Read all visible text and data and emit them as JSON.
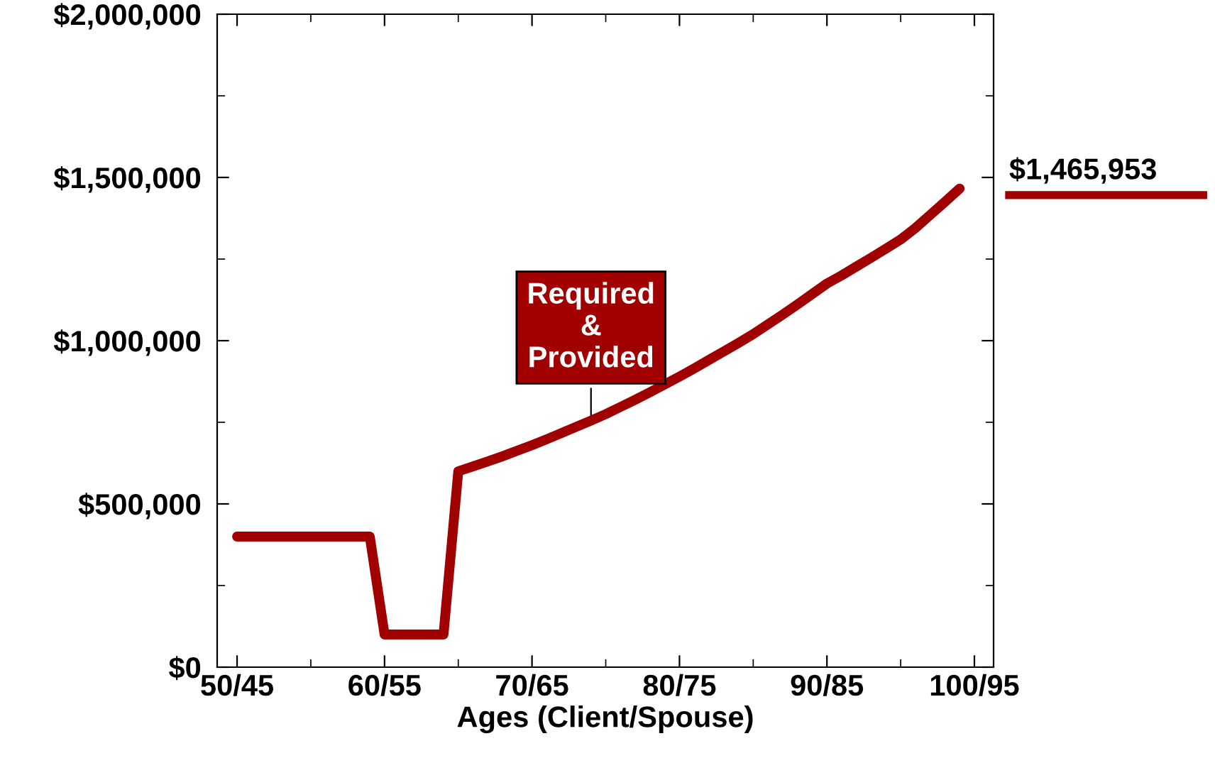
{
  "chart_data": {
    "type": "line",
    "xlabel": "Ages (Client/Spouse)",
    "categories": [
      "50/45",
      null,
      null,
      null,
      null,
      null,
      null,
      null,
      null,
      null,
      "60/55",
      null,
      null,
      null,
      null,
      null,
      null,
      null,
      null,
      null,
      "70/65",
      null,
      null,
      null,
      null,
      null,
      null,
      null,
      null,
      null,
      "80/75",
      null,
      null,
      null,
      null,
      null,
      null,
      null,
      null,
      null,
      "90/85",
      null,
      null,
      null,
      null,
      null,
      null,
      null,
      null,
      null,
      "100/95"
    ],
    "series": [
      {
        "color": "#a00000",
        "values": [
          400000,
          400000,
          400000,
          400000,
          400000,
          400000,
          400000,
          400000,
          400000,
          400000,
          100000,
          100000,
          100000,
          100000,
          100000,
          600000,
          615000,
          630000,
          646000,
          663000,
          680000,
          698000,
          717000,
          736000,
          755000,
          775000,
          797000,
          819000,
          842000,
          866000,
          890000,
          915000,
          941000,
          967000,
          993000,
          1020000,
          1050000,
          1080000,
          1111000,
          1143000,
          1175000,
          1200000,
          1227000,
          1254000,
          1282000,
          1310000,
          1345000,
          1385000,
          1425000,
          1465953,
          null
        ]
      }
    ],
    "ylim": [
      0,
      2000000
    ],
    "yticks": [
      {
        "value": 0,
        "label": "$0"
      },
      {
        "value": 500000,
        "label": "$500,000"
      },
      {
        "value": 1000000,
        "label": "$1,000,000"
      },
      {
        "value": 1500000,
        "label": "$1,500,000"
      },
      {
        "value": 2000000,
        "label": "$2,000,000"
      }
    ],
    "annotations": [
      {
        "text": "Required\n&\nProvided",
        "y": 760000
      },
      "$1,465,953"
    ],
    "grid": false,
    "marker": "none",
    "line_style": "solid"
  }
}
